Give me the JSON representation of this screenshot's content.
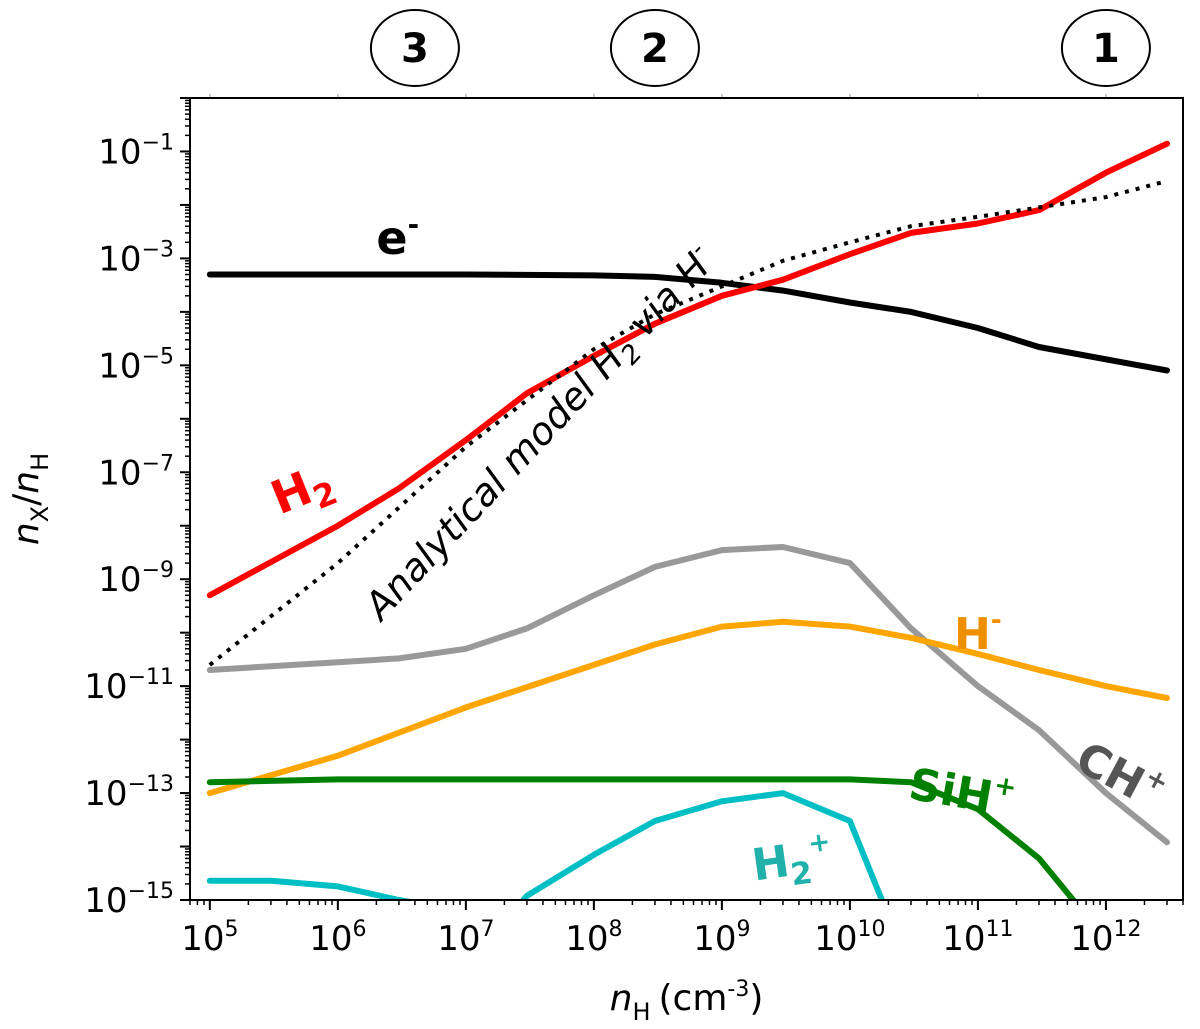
{
  "chart_data": {
    "type": "line",
    "xscale": "log",
    "yscale": "log",
    "xlim": [
      70000,
      4000000000000
    ],
    "ylim": [
      1e-15,
      1
    ],
    "xlabel": {
      "var": "n",
      "sub": "H",
      "unit": "(cm",
      "unit_exp": "-3",
      "unit_close": ")"
    },
    "ylabel": {
      "var1": "n",
      "sub1": "X",
      "slash": "/",
      "var2": "n",
      "sub2": "H"
    },
    "x_ticks": [
      {
        "value": 100000.0,
        "base": "10",
        "exp": "5"
      },
      {
        "value": 1000000.0,
        "base": "10",
        "exp": "6"
      },
      {
        "value": 10000000.0,
        "base": "10",
        "exp": "7"
      },
      {
        "value": 100000000.0,
        "base": "10",
        "exp": "8"
      },
      {
        "value": 1000000000.0,
        "base": "10",
        "exp": "9"
      },
      {
        "value": 10000000000.0,
        "base": "10",
        "exp": "10"
      },
      {
        "value": 100000000000.0,
        "base": "10",
        "exp": "11"
      },
      {
        "value": 1000000000000.0,
        "base": "10",
        "exp": "12"
      }
    ],
    "y_ticks": [
      {
        "value": 0.1,
        "base": "10",
        "exp": "−1"
      },
      {
        "value": 0.001,
        "base": "10",
        "exp": "−3"
      },
      {
        "value": 1e-05,
        "base": "10",
        "exp": "−5"
      },
      {
        "value": 1e-07,
        "base": "10",
        "exp": "−7"
      },
      {
        "value": 1e-09,
        "base": "10",
        "exp": "−9"
      },
      {
        "value": 1e-11,
        "base": "10",
        "exp": "−11"
      },
      {
        "value": 1e-13,
        "base": "10",
        "exp": "−13"
      },
      {
        "value": 1e-15,
        "base": "10",
        "exp": "−15"
      }
    ],
    "regions": [
      {
        "label": "3",
        "x": 4000000
      },
      {
        "label": "2",
        "x": 300000000.0
      },
      {
        "label": "1",
        "x": 1000000000000.0
      }
    ],
    "series": [
      {
        "name": "e⁻",
        "color": "#000000",
        "dash": false,
        "x": [
          100000.0,
          1000000.0,
          10000000.0,
          100000000.0,
          300000000.0,
          1000000000.0,
          3000000000.0,
          10000000000.0,
          30000000000.0,
          100000000000.0,
          300000000000.0,
          3000000000000.0
        ],
        "y": [
          0.0005,
          0.0005,
          0.0005,
          0.00048,
          0.00045,
          0.00035,
          0.00025,
          0.00015,
          0.0001,
          5e-05,
          2.2e-05,
          8e-06
        ]
      },
      {
        "name": "H₂",
        "color": "#ff0000",
        "dash": false,
        "x": [
          100000.0,
          1000000.0,
          3000000.0,
          10000000.0,
          30000000.0,
          100000000.0,
          300000000.0,
          1000000000.0,
          3000000000.0,
          10000000000.0,
          30000000000.0,
          100000000000.0,
          300000000000.0,
          1000000000000.0,
          3000000000000.0
        ],
        "y": [
          5e-10,
          1e-08,
          5e-08,
          4e-07,
          3e-06,
          1.5e-05,
          6e-05,
          0.0002,
          0.0004,
          0.0012,
          0.003,
          0.0045,
          0.008,
          0.04,
          0.14
        ]
      },
      {
        "name": "Analytical model H₂ via H⁻",
        "color": "#000000",
        "dash": true,
        "x": [
          100000.0,
          1000000.0,
          10000000.0,
          100000000.0,
          300000000.0,
          1000000000.0,
          3000000000.0,
          10000000000.0,
          30000000000.0,
          100000000000.0,
          300000000000.0,
          1000000000000.0,
          3000000000000.0
        ],
        "y": [
          2.5e-11,
          2e-09,
          3e-07,
          2e-05,
          9e-05,
          0.0003,
          0.0009,
          0.002,
          0.004,
          0.006,
          0.009,
          0.014,
          0.028
        ]
      },
      {
        "name": "CH⁺",
        "color": "#999999",
        "dash": false,
        "x": [
          100000.0,
          1000000.0,
          3000000.0,
          10000000.0,
          30000000.0,
          100000000.0,
          300000000.0,
          1000000000.0,
          3000000000.0,
          10000000000.0,
          30000000000.0,
          100000000000.0,
          300000000000.0,
          1000000000000.0,
          3000000000000.0
        ],
        "y": [
          2e-11,
          2.8e-11,
          3.3e-11,
          5e-11,
          1.2e-10,
          5e-10,
          1.7e-09,
          3.5e-09,
          4e-09,
          2e-09,
          1.2e-10,
          1e-11,
          1.5e-12,
          1e-13,
          1.2e-14
        ]
      },
      {
        "name": "H⁻",
        "color": "#ffa500",
        "dash": false,
        "x": [
          100000.0,
          1000000.0,
          10000000.0,
          100000000.0,
          300000000.0,
          1000000000.0,
          3000000000.0,
          10000000000.0,
          30000000000.0,
          100000000000.0,
          300000000000.0,
          1000000000000.0,
          3000000000000.0
        ],
        "y": [
          1e-13,
          5e-13,
          4e-12,
          2.5e-11,
          6e-11,
          1.3e-10,
          1.6e-10,
          1.3e-10,
          8e-11,
          4e-11,
          2e-11,
          1e-11,
          6e-12
        ]
      },
      {
        "name": "SiH⁺",
        "color": "#008000",
        "dash": false,
        "x": [
          100000.0,
          1000000.0,
          10000000.0,
          100000000.0,
          1000000000.0,
          10000000000.0,
          30000000000.0,
          100000000000.0,
          300000000000.0,
          600000000000.0
        ],
        "y": [
          1.6e-13,
          1.8e-13,
          1.8e-13,
          1.8e-13,
          1.8e-13,
          1.8e-13,
          1.6e-13,
          5e-14,
          6e-15,
          8e-16
        ]
      },
      {
        "name": "H₂⁺",
        "color": "#00bfc4",
        "dash": false,
        "x": [
          100000.0,
          300000.0,
          1000000.0,
          3000000.0,
          10000000.0,
          25000000.0,
          30000000.0,
          100000000.0,
          300000000.0,
          1000000000.0,
          3000000000.0,
          10000000000.0,
          20000000000.0
        ],
        "y": [
          2.3e-15,
          2.3e-15,
          1.8e-15,
          1e-15,
          6e-16,
          7e-16,
          1.2e-15,
          7e-15,
          3e-14,
          7e-14,
          1e-13,
          3e-14,
          5e-16
        ]
      }
    ],
    "labels": [
      {
        "text": "e",
        "sup": "-",
        "color": "#000000",
        "size": 46,
        "x": 2000000.0,
        "y": 0.0012,
        "name": "label-electron"
      },
      {
        "text": "H",
        "sub": "2",
        "color": "#ff0000",
        "size": 46,
        "x": 350000.0,
        "y": 1.6e-08,
        "rotate": -22,
        "name": "label-h2"
      },
      {
        "text": "H",
        "sup": "-",
        "color": "#ee8f00",
        "size": 44,
        "x": 65000000000.0,
        "y": 5e-11,
        "name": "label-h-minus"
      },
      {
        "text": "SiH",
        "sup": "+",
        "color": "#008000",
        "size": 44,
        "x": 28000000000.0,
        "y": 8e-14,
        "rotate": 10,
        "name": "label-sih-plus"
      },
      {
        "text": "CH",
        "sup": "+",
        "color": "#555555",
        "size": 44,
        "x": 550000000000.0,
        "y": 3e-13,
        "rotate": 28,
        "name": "label-ch-plus"
      },
      {
        "text": "H",
        "sub": "2",
        "sup": "+",
        "color": "#20b2aa",
        "size": 44,
        "x": 1800000000.0,
        "y": 2.3e-15,
        "rotate": -8,
        "name": "label-h2-plus"
      }
    ],
    "annotation": {
      "text": "Analytical model H",
      "sub": "2",
      "mid": " via H",
      "sup": "-",
      "x": 2200000.0,
      "y": 1.6e-10,
      "rotate": -47
    },
    "grid": false,
    "legend": "none (inline labels)"
  }
}
